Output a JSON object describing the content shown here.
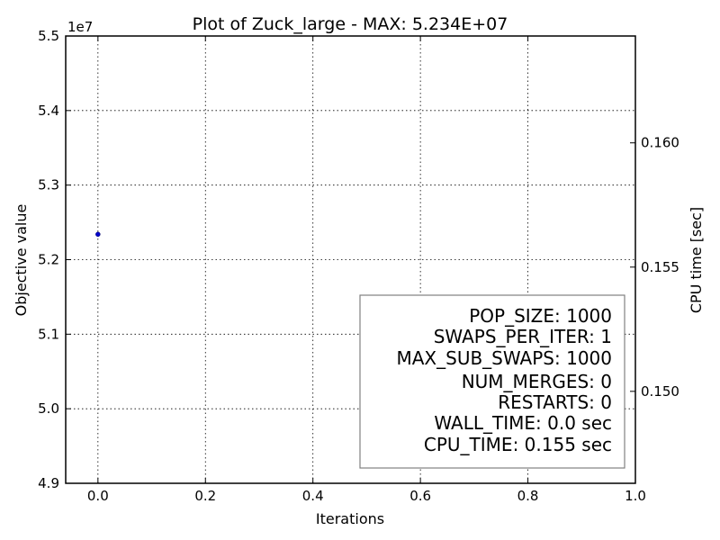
{
  "chart_data": {
    "type": "scatter",
    "title": "Plot of Zuck_large - MAX: 5.234E+07",
    "xlabel": "Iterations",
    "ylabel": "Objective value",
    "y2label": "CPU time [sec]",
    "y_offset_label": "1e7",
    "xlim": [
      -0.06,
      1.0
    ],
    "ylim": [
      4.9,
      5.5
    ],
    "y2lim": [
      0.1463,
      0.1643
    ],
    "x_ticks": [
      0.0,
      0.2,
      0.4,
      0.6,
      0.8,
      1.0
    ],
    "x_tick_labels": [
      "0.0",
      "0.2",
      "0.4",
      "0.6",
      "0.8",
      "1.0"
    ],
    "y_ticks": [
      4.9,
      5.0,
      5.1,
      5.2,
      5.3,
      5.4,
      5.5
    ],
    "y_tick_labels": [
      "4.9",
      "5.0",
      "5.1",
      "5.2",
      "5.3",
      "5.4",
      "5.5"
    ],
    "y2_ticks": [
      0.15,
      0.155,
      0.16
    ],
    "y2_tick_labels": [
      "0.150",
      "0.155",
      "0.160"
    ],
    "grid": true,
    "series": [
      {
        "color": "#0000cc",
        "x": [
          0.0
        ],
        "y": [
          5.234
        ]
      }
    ],
    "info_box": {
      "placement": "bottom-right",
      "lines": [
        "POP_SIZE: 1000",
        "SWAPS_PER_ITER: 1",
        "MAX_SUB_SWAPS: 1000",
        "NUM_MERGES: 0",
        "RESTARTS: 0",
        "WALL_TIME: 0.0 sec",
        "CPU_TIME: 0.155 sec"
      ]
    }
  }
}
